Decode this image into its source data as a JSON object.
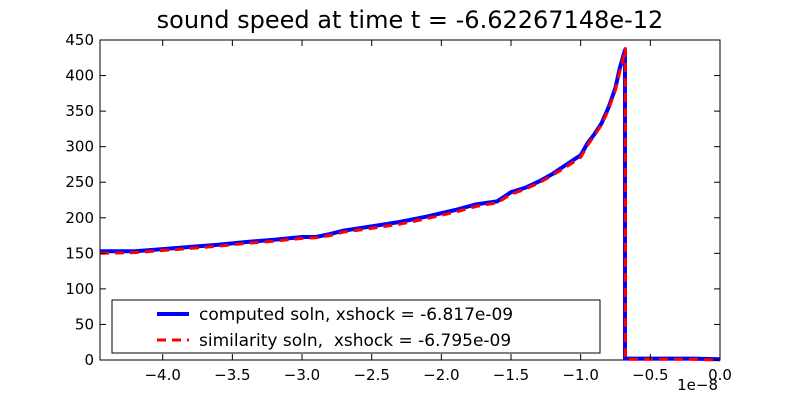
{
  "chart_data": {
    "type": "line",
    "title": "sound speed at time t = -6.62267148e-12",
    "xlabel": "",
    "ylabel": "",
    "x_offset_label": "1e−8",
    "xlim": [
      -4.45,
      0.0
    ],
    "ylim": [
      0,
      450
    ],
    "xticks": [
      -4.0,
      -3.5,
      -3.0,
      -2.5,
      -2.0,
      -1.5,
      -1.0,
      -0.5,
      0.0
    ],
    "xtick_labels": [
      "−4.0",
      "−3.5",
      "−3.0",
      "−2.5",
      "−2.0",
      "−1.5",
      "−1.0",
      "−0.5",
      "0.0"
    ],
    "yticks": [
      0,
      50,
      100,
      150,
      200,
      250,
      300,
      350,
      400,
      450
    ],
    "ytick_labels": [
      "0",
      "50",
      "100",
      "150",
      "200",
      "250",
      "300",
      "350",
      "400",
      "450"
    ],
    "grid": false,
    "legend_position": "lower-center",
    "series": [
      {
        "name": "computed soln, xshock = -6.817e-09",
        "color": "#0000ff",
        "style": "solid",
        "x": [
          -4.45,
          -4.2,
          -4.0,
          -3.8,
          -3.6,
          -3.4,
          -3.2,
          -3.0,
          -2.9,
          -2.8,
          -2.7,
          -2.5,
          -2.3,
          -2.1,
          -1.9,
          -1.75,
          -1.6,
          -1.5,
          -1.4,
          -1.3,
          -1.2,
          -1.1,
          -1.0,
          -0.95,
          -0.9,
          -0.85,
          -0.8,
          -0.75,
          -0.72,
          -0.7,
          -0.682,
          -0.682,
          -0.6,
          -0.4,
          -0.2,
          0.0
        ],
        "y": [
          153,
          153,
          156,
          159,
          162,
          166,
          169,
          173,
          173,
          177,
          182,
          188,
          194,
          202,
          211,
          219,
          223,
          236,
          242,
          251,
          262,
          275,
          288,
          305,
          318,
          333,
          355,
          383,
          410,
          424,
          436,
          2,
          2,
          2,
          2,
          1
        ]
      },
      {
        "name": "similarity soln,  xshock = -6.795e-09",
        "color": "#ff0000",
        "style": "dashed",
        "x": [
          -4.45,
          -4.2,
          -4.0,
          -3.8,
          -3.6,
          -3.4,
          -3.2,
          -3.0,
          -2.9,
          -2.8,
          -2.7,
          -2.5,
          -2.3,
          -2.1,
          -1.9,
          -1.75,
          -1.6,
          -1.5,
          -1.4,
          -1.3,
          -1.2,
          -1.1,
          -1.0,
          -0.95,
          -0.9,
          -0.85,
          -0.8,
          -0.75,
          -0.72,
          -0.7,
          -0.68,
          -0.68,
          -0.6,
          -0.4,
          -0.2,
          0.0
        ],
        "y": [
          150,
          151,
          154,
          157,
          160,
          164,
          167,
          171,
          172,
          175,
          180,
          185,
          191,
          199,
          208,
          216,
          221,
          233,
          240,
          249,
          260,
          272,
          285,
          302,
          316,
          331,
          352,
          380,
          405,
          420,
          438,
          1,
          1,
          1,
          1,
          0
        ]
      }
    ]
  }
}
